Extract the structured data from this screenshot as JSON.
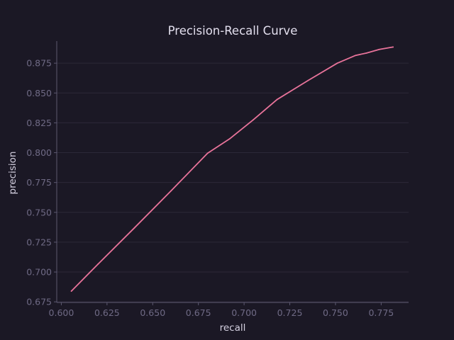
{
  "chart_data": {
    "type": "line",
    "title": "Precision-Recall Curve",
    "xlabel": "recall",
    "ylabel": "precision",
    "xlim": [
      0.5975,
      0.79
    ],
    "ylim": [
      0.6745,
      0.8935
    ],
    "xticks": [
      "0.600",
      "0.625",
      "0.650",
      "0.675",
      "0.700",
      "0.725",
      "0.750",
      "0.775"
    ],
    "yticks": [
      "0.675",
      "0.700",
      "0.725",
      "0.750",
      "0.775",
      "0.800",
      "0.825",
      "0.850",
      "0.875"
    ],
    "grid": "y-only",
    "series": [
      {
        "color": "#e8739a",
        "x": [
          0.6055,
          0.62,
          0.64,
          0.66,
          0.68,
          0.692,
          0.705,
          0.718,
          0.735,
          0.751,
          0.761,
          0.767,
          0.774,
          0.7815
        ],
        "y": [
          0.684,
          0.7065,
          0.737,
          0.768,
          0.7995,
          0.8115,
          0.8275,
          0.8445,
          0.8605,
          0.875,
          0.8815,
          0.8835,
          0.8865,
          0.8885
        ]
      }
    ]
  },
  "colors": {
    "background": "#1b1825",
    "line": "#e8739a",
    "grid": "#2c2838",
    "tick_label": "#6f6a85",
    "axis_title": "#d4d0e0"
  }
}
